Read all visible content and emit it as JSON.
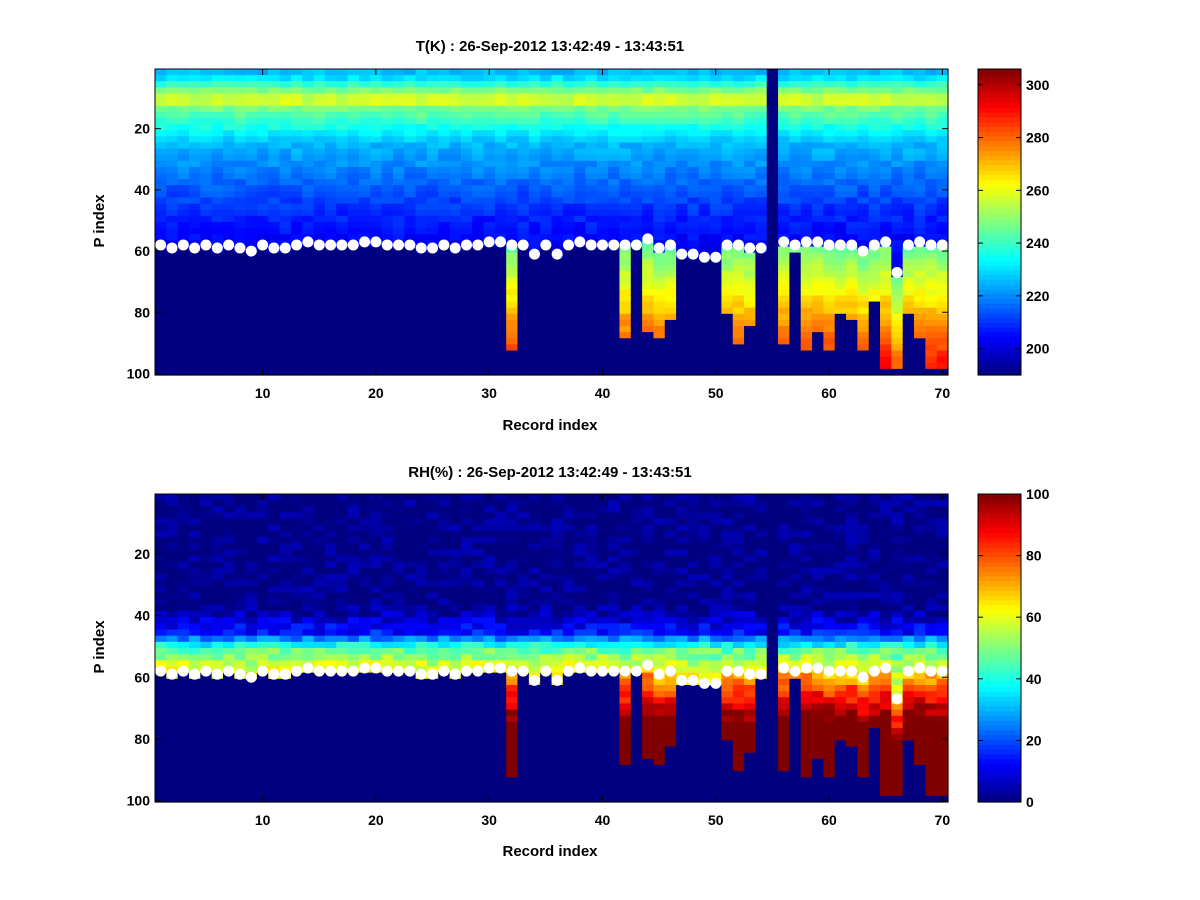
{
  "chart_data": [
    {
      "type": "heatmap",
      "title": "T(K) : 26-Sep-2012 13:42:49 - 13:43:51",
      "xlabel": "Record index",
      "ylabel": "P index",
      "xlim": [
        0.5,
        70.5
      ],
      "ylim": [
        0.5,
        100.5
      ],
      "y_reversed": true,
      "x_ticks": [
        10,
        20,
        30,
        40,
        50,
        60,
        70
      ],
      "y_ticks": [
        20,
        40,
        60,
        80,
        100
      ],
      "colormap": "jet",
      "clim": [
        190,
        306
      ],
      "colorbar_ticks": [
        200,
        220,
        240,
        260,
        280,
        300
      ],
      "surface_marker_color": "#ffffff",
      "surface_p_index": [
        58,
        59,
        58,
        59,
        58,
        59,
        58,
        59,
        60,
        58,
        59,
        59,
        58,
        57,
        58,
        58,
        58,
        58,
        57,
        57,
        58,
        58,
        58,
        59,
        59,
        58,
        59,
        58,
        58,
        57,
        57,
        58,
        58,
        61,
        58,
        61,
        58,
        57,
        58,
        58,
        58,
        58,
        58,
        56,
        59,
        58,
        61,
        61,
        62,
        62,
        58,
        58,
        59,
        59,
        58,
        57,
        58,
        57,
        57,
        58,
        58,
        58,
        60,
        58,
        57,
        67,
        58,
        57,
        58,
        58
      ],
      "missing_columns": [
        55
      ],
      "ground_fill_p_index": [
        100,
        100,
        100,
        100,
        100,
        100,
        100,
        100,
        100,
        100,
        100,
        100,
        100,
        100,
        100,
        100,
        100,
        100,
        100,
        100,
        100,
        100,
        100,
        100,
        100,
        100,
        100,
        100,
        100,
        100,
        100,
        93,
        100,
        100,
        100,
        100,
        100,
        100,
        100,
        100,
        100,
        88,
        100,
        86,
        88,
        82,
        100,
        100,
        100,
        100,
        80,
        90,
        85,
        100,
        91,
        90,
        61,
        92,
        87,
        92,
        80,
        82,
        92,
        76,
        98,
        98,
        81,
        89,
        98,
        98
      ]
    },
    {
      "type": "heatmap",
      "title": "RH(%) : 26-Sep-2012 13:42:49 - 13:43:51",
      "xlabel": "Record index",
      "ylabel": "P index",
      "xlim": [
        0.5,
        70.5
      ],
      "ylim": [
        0.5,
        100.5
      ],
      "y_reversed": true,
      "x_ticks": [
        10,
        20,
        30,
        40,
        50,
        60,
        70
      ],
      "y_ticks": [
        20,
        40,
        60,
        80,
        100
      ],
      "colormap": "jet",
      "clim": [
        0,
        100
      ],
      "colorbar_ticks": [
        0,
        20,
        40,
        60,
        80,
        100
      ],
      "surface_marker_color": "#ffffff",
      "surface_p_index": [
        58,
        59,
        58,
        59,
        58,
        59,
        58,
        59,
        60,
        58,
        59,
        59,
        58,
        57,
        58,
        58,
        58,
        58,
        57,
        57,
        58,
        58,
        58,
        59,
        59,
        58,
        59,
        58,
        58,
        57,
        57,
        58,
        58,
        61,
        58,
        61,
        58,
        57,
        58,
        58,
        58,
        58,
        58,
        56,
        59,
        58,
        61,
        61,
        62,
        62,
        58,
        58,
        59,
        59,
        58,
        57,
        58,
        57,
        57,
        58,
        58,
        58,
        60,
        58,
        57,
        67,
        58,
        57,
        58,
        58
      ],
      "missing_columns": [
        55
      ],
      "ground_fill_p_index": [
        100,
        100,
        100,
        100,
        100,
        100,
        100,
        100,
        100,
        100,
        100,
        100,
        100,
        100,
        100,
        100,
        100,
        100,
        100,
        100,
        100,
        100,
        100,
        100,
        100,
        100,
        100,
        100,
        100,
        100,
        100,
        93,
        100,
        100,
        100,
        100,
        100,
        100,
        100,
        100,
        100,
        88,
        100,
        86,
        88,
        82,
        100,
        100,
        100,
        100,
        80,
        90,
        85,
        100,
        91,
        90,
        61,
        92,
        87,
        92,
        80,
        82,
        92,
        76,
        98,
        98,
        81,
        89,
        98,
        98
      ]
    }
  ]
}
